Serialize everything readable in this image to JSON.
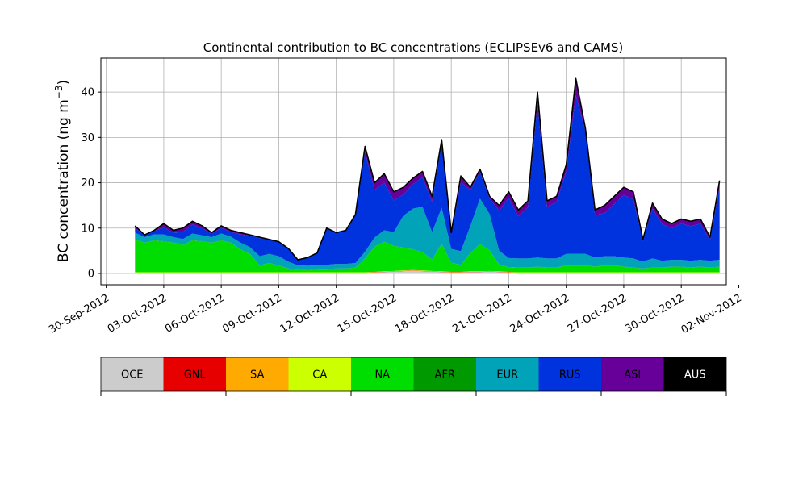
{
  "chart_data": {
    "type": "area",
    "stacked": true,
    "title": "Continental contribution to BC concentrations (ECLIPSEv6 and CAMS)",
    "ylabel_main": "BC concentration (ng m",
    "ylabel_sup": "−3",
    "ylabel_close": ")",
    "xlabel": "",
    "grid": true,
    "ylim": [
      -2.5,
      47.5
    ],
    "xlim": [
      -0.28,
      32.35
    ],
    "yticks": [
      0,
      10,
      20,
      30,
      40
    ],
    "ytick_labels": [
      "0",
      "10",
      "20",
      "30",
      "40"
    ],
    "xticks": [
      0,
      3,
      6,
      9,
      12,
      15,
      18,
      21,
      24,
      27,
      30,
      33
    ],
    "xtick_labels": [
      "30-Sep-2012",
      "03-Oct-2012",
      "06-Oct-2012",
      "09-Oct-2012",
      "12-Oct-2012",
      "15-Oct-2012",
      "18-Oct-2012",
      "21-Oct-2012",
      "24-Oct-2012",
      "27-Oct-2012",
      "30-Oct-2012",
      "02-Nov-2012"
    ],
    "x_unit": "days since 30-Sep-2012",
    "x": [
      1.5,
      2.0,
      2.5,
      3.0,
      3.5,
      4.0,
      4.5,
      5.0,
      5.5,
      6.0,
      6.5,
      7.0,
      7.5,
      8.0,
      8.5,
      9.0,
      9.5,
      10.0,
      10.5,
      11.0,
      11.5,
      12.0,
      12.5,
      13.0,
      13.5,
      14.0,
      14.5,
      15.0,
      15.5,
      16.0,
      16.5,
      17.0,
      17.5,
      18.0,
      18.5,
      19.0,
      19.5,
      20.0,
      20.5,
      21.0,
      21.5,
      22.0,
      22.5,
      23.0,
      23.5,
      24.0,
      24.5,
      25.0,
      25.5,
      26.0,
      26.5,
      27.0,
      27.5,
      28.0,
      28.5,
      29.0,
      29.5,
      30.0,
      30.5,
      31.0,
      31.5,
      32.0
    ],
    "total": [
      10.5,
      8.5,
      9.5,
      11.0,
      9.5,
      10.0,
      11.5,
      10.5,
      9.0,
      10.5,
      9.5,
      9.0,
      8.5,
      8.0,
      7.5,
      7.0,
      5.5,
      3.0,
      3.5,
      4.5,
      10.0,
      9.0,
      9.5,
      13.0,
      28.0,
      20.0,
      22.0,
      18.0,
      19.0,
      21.0,
      22.5,
      17.0,
      29.5,
      9.0,
      21.5,
      19.0,
      23.0,
      17.0,
      15.0,
      18.0,
      14.0,
      16.0,
      40.0,
      16.0,
      17.0,
      24.0,
      43.0,
      32.0,
      14.0,
      15.0,
      17.0,
      19.0,
      18.0,
      7.5,
      15.5,
      12.0,
      11.0,
      12.0,
      11.5,
      12.0,
      8.0,
      20.5
    ],
    "series": [
      {
        "name": "OCE",
        "color": "#cccccc",
        "values": [
          0.1,
          0.1,
          0.1,
          0.1,
          0.1,
          0.1,
          0.1,
          0.1,
          0.1,
          0.1,
          0.1,
          0.1,
          0.1,
          0.1,
          0.1,
          0.1,
          0.1,
          0.1,
          0.1,
          0.1,
          0.1,
          0.1,
          0.1,
          0.1,
          0.1,
          0.2,
          0.3,
          0.4,
          0.5,
          0.6,
          0.5,
          0.4,
          0.3,
          0.2,
          0.2,
          0.3,
          0.3,
          0.4,
          0.3,
          0.2,
          0.1,
          0.1,
          0.1,
          0.1,
          0.1,
          0.1,
          0.1,
          0.1,
          0.1,
          0.1,
          0.1,
          0.1,
          0.1,
          0.1,
          0.1,
          0.1,
          0.1,
          0.1,
          0.1,
          0.1,
          0.1,
          0.1
        ]
      },
      {
        "name": "GNL",
        "color": "#e60000",
        "values": [
          0.05,
          0.05,
          0.05,
          0.05,
          0.05,
          0.05,
          0.05,
          0.05,
          0.05,
          0.05,
          0.05,
          0.05,
          0.05,
          0.05,
          0.05,
          0.05,
          0.05,
          0.05,
          0.05,
          0.05,
          0.05,
          0.05,
          0.05,
          0.05,
          0.05,
          0.05,
          0.05,
          0.05,
          0.05,
          0.05,
          0.05,
          0.05,
          0.05,
          0.05,
          0.05,
          0.05,
          0.05,
          0.05,
          0.05,
          0.05,
          0.05,
          0.05,
          0.05,
          0.05,
          0.05,
          0.05,
          0.05,
          0.05,
          0.05,
          0.05,
          0.05,
          0.05,
          0.05,
          0.05,
          0.05,
          0.05,
          0.05,
          0.05,
          0.05,
          0.05,
          0.05,
          0.05
        ]
      },
      {
        "name": "SA",
        "color": "#ffaa00",
        "values": [
          0.05,
          0.05,
          0.05,
          0.05,
          0.05,
          0.05,
          0.05,
          0.05,
          0.05,
          0.05,
          0.05,
          0.05,
          0.05,
          0.05,
          0.05,
          0.05,
          0.05,
          0.05,
          0.05,
          0.05,
          0.05,
          0.05,
          0.05,
          0.05,
          0.05,
          0.05,
          0.05,
          0.05,
          0.05,
          0.05,
          0.05,
          0.05,
          0.05,
          0.05,
          0.05,
          0.05,
          0.05,
          0.05,
          0.05,
          0.05,
          0.05,
          0.05,
          0.05,
          0.05,
          0.05,
          0.05,
          0.05,
          0.05,
          0.05,
          0.05,
          0.05,
          0.05,
          0.05,
          0.05,
          0.05,
          0.05,
          0.05,
          0.05,
          0.05,
          0.05,
          0.05,
          0.05
        ]
      },
      {
        "name": "CA",
        "color": "#ccff00",
        "values": [
          0.05,
          0.05,
          0.05,
          0.05,
          0.05,
          0.05,
          0.05,
          0.05,
          0.05,
          0.05,
          0.05,
          0.05,
          0.05,
          0.05,
          0.05,
          0.05,
          0.05,
          0.05,
          0.05,
          0.05,
          0.05,
          0.05,
          0.05,
          0.05,
          0.05,
          0.05,
          0.05,
          0.05,
          0.05,
          0.05,
          0.05,
          0.05,
          0.05,
          0.05,
          0.05,
          0.05,
          0.05,
          0.05,
          0.05,
          0.05,
          0.05,
          0.05,
          0.05,
          0.05,
          0.05,
          0.05,
          0.05,
          0.05,
          0.05,
          0.05,
          0.05,
          0.05,
          0.05,
          0.05,
          0.05,
          0.05,
          0.05,
          0.05,
          0.05,
          0.05,
          0.05,
          0.05
        ]
      },
      {
        "name": "NA",
        "color": "#00dd00",
        "values": [
          7.2,
          6.5,
          7.0,
          6.8,
          6.5,
          6.0,
          7.0,
          6.8,
          6.5,
          7.0,
          6.5,
          5.0,
          4.0,
          1.5,
          2.0,
          1.5,
          0.8,
          0.5,
          0.4,
          0.5,
          0.6,
          0.8,
          0.8,
          1.0,
          3.0,
          5.5,
          6.5,
          5.5,
          5.0,
          4.5,
          4.0,
          2.5,
          6.0,
          2.0,
          1.5,
          4.0,
          6.0,
          4.5,
          1.5,
          1.0,
          1.0,
          1.0,
          1.2,
          1.0,
          1.0,
          1.5,
          1.5,
          1.5,
          1.2,
          1.5,
          1.5,
          1.2,
          1.0,
          0.8,
          1.0,
          1.0,
          1.2,
          1.2,
          1.0,
          1.2,
          1.0,
          1.2
        ]
      },
      {
        "name": "AFR",
        "color": "#009900",
        "values": [
          0.05,
          0.05,
          0.05,
          0.05,
          0.05,
          0.05,
          0.05,
          0.05,
          0.05,
          0.05,
          0.05,
          0.05,
          0.05,
          0.05,
          0.05,
          0.05,
          0.05,
          0.05,
          0.05,
          0.05,
          0.05,
          0.05,
          0.05,
          0.05,
          0.05,
          0.05,
          0.05,
          0.05,
          0.05,
          0.05,
          0.05,
          0.05,
          0.05,
          0.05,
          0.05,
          0.05,
          0.05,
          0.05,
          0.05,
          0.05,
          0.05,
          0.05,
          0.05,
          0.05,
          0.05,
          0.05,
          0.05,
          0.05,
          0.05,
          0.05,
          0.05,
          0.05,
          0.05,
          0.05,
          0.05,
          0.05,
          0.05,
          0.05,
          0.05,
          0.05,
          0.05,
          0.05
        ]
      },
      {
        "name": "EUR",
        "color": "#00a3b8",
        "values": [
          1.5,
          1.2,
          1.3,
          1.5,
          1.2,
          1.3,
          1.5,
          1.3,
          1.2,
          1.5,
          1.3,
          1.5,
          1.5,
          2.0,
          2.0,
          2.0,
          1.5,
          1.0,
          1.0,
          1.0,
          1.0,
          1.0,
          1.0,
          1.0,
          1.5,
          2.0,
          2.5,
          3.0,
          7.0,
          9.0,
          10.0,
          6.0,
          8.0,
          3.0,
          3.0,
          6.0,
          10.0,
          8.0,
          3.0,
          2.0,
          2.0,
          2.0,
          2.0,
          2.0,
          2.0,
          2.5,
          2.5,
          2.5,
          2.0,
          2.0,
          2.0,
          2.0,
          2.0,
          1.5,
          2.0,
          1.5,
          1.5,
          1.5,
          1.5,
          1.5,
          1.5,
          1.5
        ]
      },
      {
        "name": "RUS",
        "color": "#0033dd",
        "values": [
          1.0,
          0.5,
          0.8,
          1.5,
          1.0,
          1.5,
          2.0,
          1.5,
          0.8,
          1.2,
          1.0,
          1.8,
          2.5,
          4.0,
          3.2,
          3.3,
          2.9,
          1.2,
          1.8,
          2.7,
          8.1,
          6.9,
          7.4,
          10.5,
          22.0,
          10.5,
          10.5,
          7.0,
          4.7,
          5.4,
          6.5,
          6.7,
          14.5,
          3.1,
          15.2,
          7.9,
          5.9,
          3.4,
          8.8,
          13.3,
          9.3,
          11.3,
          34.1,
          11.3,
          12.5,
          18.2,
          35.0,
          27.0,
          9.3,
          9.5,
          11.5,
          13.8,
          13.0,
          4.6,
          11.0,
          8.1,
          7.0,
          8.0,
          7.6,
          8.0,
          4.5,
          16.0
        ]
      },
      {
        "name": "ASI",
        "color": "#660099",
        "values": [
          0.4,
          0.0,
          0.1,
          1.0,
          0.6,
          1.0,
          0.8,
          0.7,
          0.3,
          0.5,
          0.5,
          0.5,
          0.3,
          0.3,
          0.1,
          0.0,
          0.0,
          0.1,
          0.1,
          0.1,
          0.0,
          0.1,
          0.1,
          0.3,
          1.2,
          1.5,
          2.0,
          1.9,
          1.6,
          1.3,
          1.3,
          1.2,
          0.5,
          0.5,
          1.4,
          0.6,
          0.6,
          0.5,
          1.2,
          1.3,
          1.4,
          1.4,
          2.4,
          1.4,
          1.2,
          1.5,
          3.8,
          1.2,
          1.2,
          1.8,
          1.7,
          1.7,
          1.7,
          0.3,
          1.2,
          1.1,
          1.0,
          1.1,
          1.1,
          1.0,
          0.7,
          1.5
        ]
      },
      {
        "name": "AUS",
        "color": "#000000",
        "values": [
          0.0,
          0.0,
          0.0,
          0.0,
          0.0,
          0.0,
          0.0,
          0.0,
          0.0,
          0.0,
          0.0,
          0.0,
          0.0,
          0.0,
          0.0,
          0.0,
          0.0,
          0.0,
          0.0,
          0.0,
          0.0,
          0.0,
          0.0,
          0.0,
          0.0,
          0.0,
          0.0,
          0.0,
          0.0,
          0.0,
          0.0,
          0.0,
          0.0,
          0.0,
          0.0,
          0.0,
          0.0,
          0.0,
          0.0,
          0.0,
          0.0,
          0.0,
          0.0,
          0.0,
          0.0,
          0.0,
          0.0,
          0.0,
          0.0,
          0.0,
          0.0,
          0.0,
          0.0,
          0.0,
          0.0,
          0.0,
          0.0,
          0.0,
          0.0,
          0.0,
          0.0,
          0.0
        ]
      }
    ],
    "legend": {
      "placement": "bottom colorbar",
      "entries": [
        "OCE",
        "GNL",
        "SA",
        "CA",
        "NA",
        "AFR",
        "EUR",
        "RUS",
        "ASI",
        "AUS"
      ],
      "text_colors": [
        "#000000",
        "#000000",
        "#000000",
        "#000000",
        "#000000",
        "#000000",
        "#000000",
        "#000000",
        "#000000",
        "#ffffff"
      ]
    }
  }
}
